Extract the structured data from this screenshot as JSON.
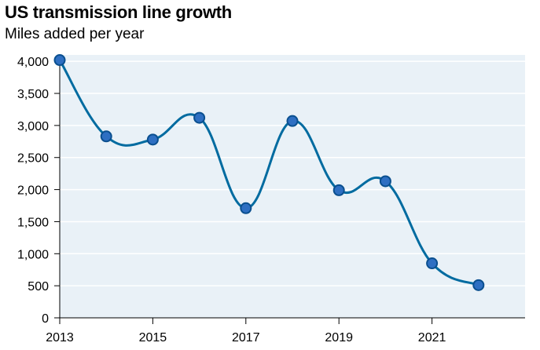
{
  "chart_data": {
    "type": "line",
    "title": "US transmission line growth",
    "subtitle": "Miles added per year",
    "xlabel": "",
    "ylabel": "",
    "x": [
      2013,
      2014,
      2015,
      2016,
      2017,
      2018,
      2019,
      2020,
      2021,
      2022
    ],
    "series": [
      {
        "name": "Miles added",
        "values": [
          4020,
          2830,
          2780,
          3120,
          1710,
          3070,
          1990,
          2130,
          850,
          510
        ]
      }
    ],
    "xlim": [
      2013,
      2023
    ],
    "ylim": [
      0,
      4100
    ],
    "x_ticks": [
      "2013",
      "2015",
      "2017",
      "2019",
      "2021"
    ],
    "y_ticks": [
      "0",
      "500",
      "1,000",
      "1,500",
      "2,000",
      "2,500",
      "3,000",
      "3,500",
      "4,000"
    ],
    "colors": {
      "line": "#006ba0",
      "marker_fill": "#2e6fc2",
      "marker_stroke": "#0a4f8f",
      "plot_background": "#e9f1f7",
      "gridline": "#ffffff"
    }
  }
}
